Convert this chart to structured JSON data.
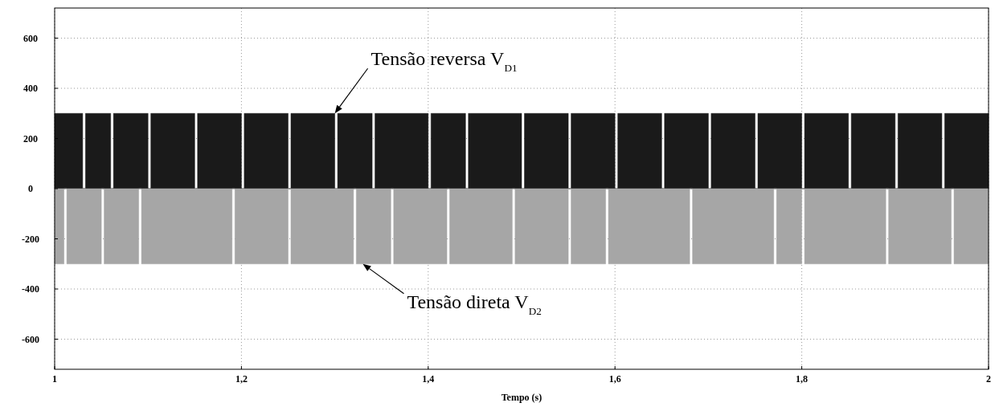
{
  "chart_data": {
    "type": "area",
    "xlabel": "Tempo (s)",
    "xlim": [
      1,
      2
    ],
    "ylim": [
      -720,
      720
    ],
    "xticks": [
      {
        "value": 1,
        "label": "1"
      },
      {
        "value": 1.2,
        "label": "1,2"
      },
      {
        "value": 1.4,
        "label": "1,4"
      },
      {
        "value": 1.6,
        "label": "1,6"
      },
      {
        "value": 1.8,
        "label": "1,8"
      },
      {
        "value": 2,
        "label": "2"
      }
    ],
    "yticks": [
      -600,
      -400,
      -200,
      0,
      200,
      400,
      600
    ],
    "grid": true,
    "series": [
      {
        "color": "#1a1a1a",
        "x": [
          1,
          1.03,
          1.03,
          1.033,
          1.033,
          1.06,
          1.06,
          1.063,
          1.063,
          1.1,
          1.1,
          1.103,
          1.103,
          1.15,
          1.15,
          1.153,
          1.153,
          1.2,
          1.2,
          1.203,
          1.203,
          1.25,
          1.25,
          1.253,
          1.253,
          1.3,
          1.3,
          1.303,
          1.303,
          1.34,
          1.34,
          1.343,
          1.343,
          1.4,
          1.4,
          1.403,
          1.403,
          1.44,
          1.44,
          1.443,
          1.443,
          1.5,
          1.5,
          1.503,
          1.503,
          1.55,
          1.55,
          1.553,
          1.553,
          1.6,
          1.6,
          1.603,
          1.603,
          1.65,
          1.65,
          1.653,
          1.653,
          1.7,
          1.7,
          1.703,
          1.703,
          1.75,
          1.75,
          1.753,
          1.753,
          1.8,
          1.8,
          1.803,
          1.803,
          1.85,
          1.85,
          1.853,
          1.853,
          1.9,
          1.9,
          1.903,
          1.903,
          1.95,
          1.95,
          1.953,
          1.953,
          2
        ],
        "values": [
          300,
          300,
          0,
          0,
          300,
          300,
          0,
          0,
          300,
          300,
          0,
          0,
          300,
          300,
          0,
          0,
          300,
          300,
          0,
          0,
          300,
          300,
          0,
          0,
          300,
          300,
          0,
          0,
          300,
          300,
          0,
          0,
          300,
          300,
          0,
          0,
          300,
          300,
          0,
          0,
          300,
          300,
          0,
          0,
          300,
          300,
          0,
          0,
          300,
          300,
          0,
          0,
          300,
          300,
          0,
          0,
          300,
          300,
          0,
          0,
          300,
          300,
          0,
          0,
          300,
          300,
          0,
          0,
          300,
          300,
          0,
          0,
          300,
          300,
          0,
          0,
          300,
          300,
          0,
          0,
          300,
          300
        ]
      },
      {
        "color": "#a6a6a6",
        "x": [
          1,
          1.01,
          1.01,
          1.013,
          1.013,
          1.05,
          1.05,
          1.053,
          1.053,
          1.09,
          1.09,
          1.093,
          1.093,
          1.19,
          1.19,
          1.193,
          1.193,
          1.25,
          1.25,
          1.253,
          1.253,
          1.32,
          1.32,
          1.323,
          1.323,
          1.36,
          1.36,
          1.363,
          1.363,
          1.42,
          1.42,
          1.423,
          1.423,
          1.49,
          1.49,
          1.493,
          1.493,
          1.55,
          1.55,
          1.553,
          1.553,
          1.59,
          1.59,
          1.593,
          1.593,
          1.68,
          1.68,
          1.683,
          1.683,
          1.77,
          1.77,
          1.773,
          1.773,
          1.8,
          1.8,
          1.803,
          1.803,
          1.89,
          1.89,
          1.893,
          1.893,
          1.96,
          1.96,
          1.963,
          1.963,
          2
        ],
        "values": [
          -300,
          -300,
          0,
          0,
          -300,
          -300,
          0,
          0,
          -300,
          -300,
          0,
          0,
          -300,
          -300,
          0,
          0,
          -300,
          -300,
          0,
          0,
          -300,
          -300,
          0,
          0,
          -300,
          -300,
          0,
          0,
          -300,
          -300,
          0,
          0,
          -300,
          -300,
          0,
          0,
          -300,
          -300,
          0,
          0,
          -300,
          -300,
          0,
          0,
          -300,
          -300,
          0,
          0,
          -300,
          -300,
          0,
          0,
          -300,
          -300,
          0,
          0,
          -300,
          -300,
          0,
          0,
          -300,
          -300,
          0,
          0,
          -300,
          -300
        ]
      }
    ],
    "annotations": [
      "Tensão reversa V$_{D1}$",
      "Tensão direta V$_{D2}$"
    ]
  }
}
